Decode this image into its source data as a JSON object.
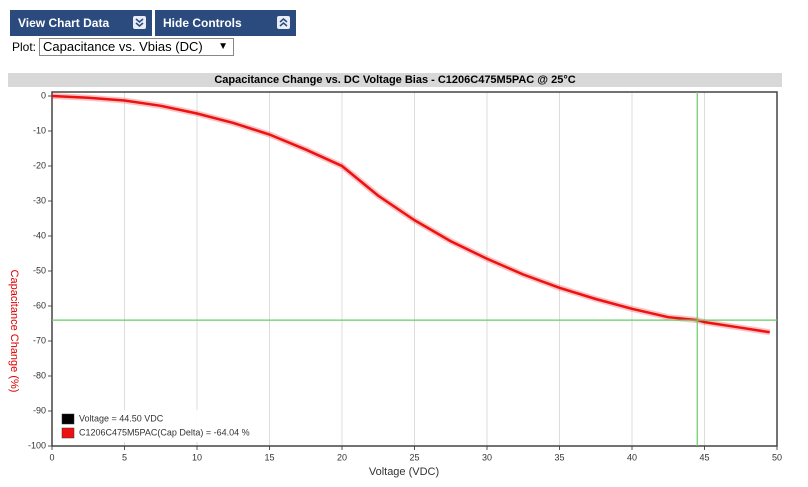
{
  "ui": {
    "buttons": [
      "View Chart Data",
      "Hide Controls"
    ],
    "plot_label": "Plot:",
    "plot_select": "Capacitance vs. Vbias (DC)"
  },
  "chart_data": {
    "type": "line",
    "title": "Capacitance Change vs. DC Voltage Bias - C1206C475M5PAC @ 25°C",
    "xlabel": "Voltage (VDC)",
    "ylabel": "Capacitance Change (%)",
    "x": [
      0,
      2.5,
      5,
      7.5,
      10,
      12.5,
      15,
      17.5,
      20,
      22.5,
      25,
      27.5,
      30,
      32.5,
      35,
      37.5,
      40,
      42.5,
      44.5,
      45,
      47.5,
      49.5
    ],
    "series": [
      {
        "color": "#ee1111",
        "values": [
          0,
          -0.5,
          -1.3,
          -2.8,
          -5,
          -7.7,
          -11,
          -15.3,
          -20,
          -28.5,
          -35.5,
          -41.5,
          -46.5,
          -51,
          -54.8,
          -58,
          -60.8,
          -63.2,
          -64.04,
          -64.6,
          -66.2,
          -67.5
        ]
      }
    ],
    "xlim": [
      0,
      50
    ],
    "xticks": [
      0,
      5,
      10,
      15,
      20,
      25,
      30,
      35,
      40,
      45,
      50
    ],
    "ylim": [
      -100,
      0
    ],
    "yticks": [
      0,
      -10,
      -20,
      -30,
      -40,
      -50,
      -60,
      -70,
      -80,
      -90,
      -100
    ],
    "grid": "x",
    "crosshair": {
      "x": 44.5,
      "y": -64.04,
      "color": "#66cc66"
    },
    "legend": [
      {
        "label": "Voltage = 44.50 VDC",
        "color": "#000000"
      },
      {
        "label": "C1206C475M5PAC(Cap Delta) = -64.04 %",
        "color": "#ee1111"
      }
    ]
  }
}
